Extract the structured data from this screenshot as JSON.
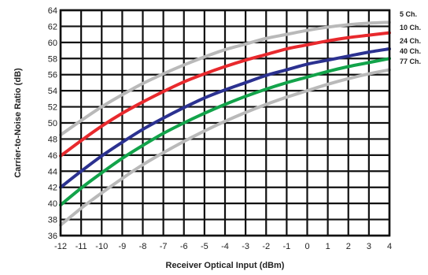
{
  "chart_data": {
    "type": "line",
    "xlabel": "Receiver Optical Input (dBm)",
    "ylabel": "Carrier-to-Noise Ratio (dB)",
    "xlim": [
      -12,
      4
    ],
    "ylim": [
      36,
      64
    ],
    "x_ticks": [
      -12,
      -11,
      -10,
      -9,
      -8,
      -7,
      -6,
      -5,
      -4,
      -3,
      -2,
      -1,
      0,
      1,
      2,
      3,
      4
    ],
    "x_tick_labels": [
      "-12",
      "-11",
      "-10",
      "-9",
      "-8",
      "-7",
      "-6",
      "-5",
      "-4",
      "-3",
      "-2",
      "-1",
      "0",
      "1",
      "2",
      "3",
      "4"
    ],
    "y_ticks": [
      36,
      38,
      40,
      42,
      44,
      46,
      48,
      50,
      52,
      54,
      56,
      58,
      60,
      62,
      64
    ],
    "y_tick_labels": [
      "36",
      "38",
      "40",
      "42",
      "44",
      "46",
      "48",
      "50",
      "52",
      "54",
      "56",
      "58",
      "60",
      "62",
      "64"
    ],
    "grid": true,
    "legend": "right",
    "x": [
      -12,
      -11,
      -10,
      -9,
      -8,
      -7,
      -6,
      -5,
      -4,
      -3,
      -2,
      -1,
      0,
      1,
      2,
      3,
      4
    ],
    "series": [
      {
        "name": "5 Ch.",
        "color": "#b9b9b9",
        "values": [
          48.5,
          50.3,
          52.0,
          53.5,
          54.9,
          56.1,
          57.2,
          58.2,
          59.1,
          59.8,
          60.5,
          61.0,
          61.5,
          61.9,
          62.2,
          62.4,
          62.5
        ]
      },
      {
        "name": "10 Ch.",
        "color": "#e8292d",
        "values": [
          45.9,
          47.8,
          49.6,
          51.2,
          52.6,
          53.9,
          55.1,
          56.1,
          57.0,
          57.8,
          58.5,
          59.2,
          59.7,
          60.2,
          60.6,
          60.9,
          61.2
        ]
      },
      {
        "name": "24 Ch.",
        "color": "#2b3190",
        "values": [
          42.0,
          44.0,
          45.9,
          47.6,
          49.2,
          50.6,
          51.9,
          53.1,
          54.1,
          55.0,
          55.9,
          56.6,
          57.3,
          57.8,
          58.3,
          58.8,
          59.2
        ]
      },
      {
        "name": "40 Ch.",
        "color": "#12a34a",
        "values": [
          39.8,
          41.9,
          43.8,
          45.6,
          47.2,
          48.7,
          50.0,
          51.2,
          52.3,
          53.3,
          54.2,
          55.0,
          55.7,
          56.4,
          57.0,
          57.5,
          58.0
        ]
      },
      {
        "name": "77 Ch.",
        "color": "#b9b9b9",
        "values": [
          37.3,
          39.4,
          41.3,
          43.1,
          44.8,
          46.3,
          47.7,
          49.0,
          50.2,
          51.3,
          52.3,
          53.2,
          54.0,
          54.8,
          55.5,
          56.1,
          56.6
        ]
      }
    ]
  }
}
